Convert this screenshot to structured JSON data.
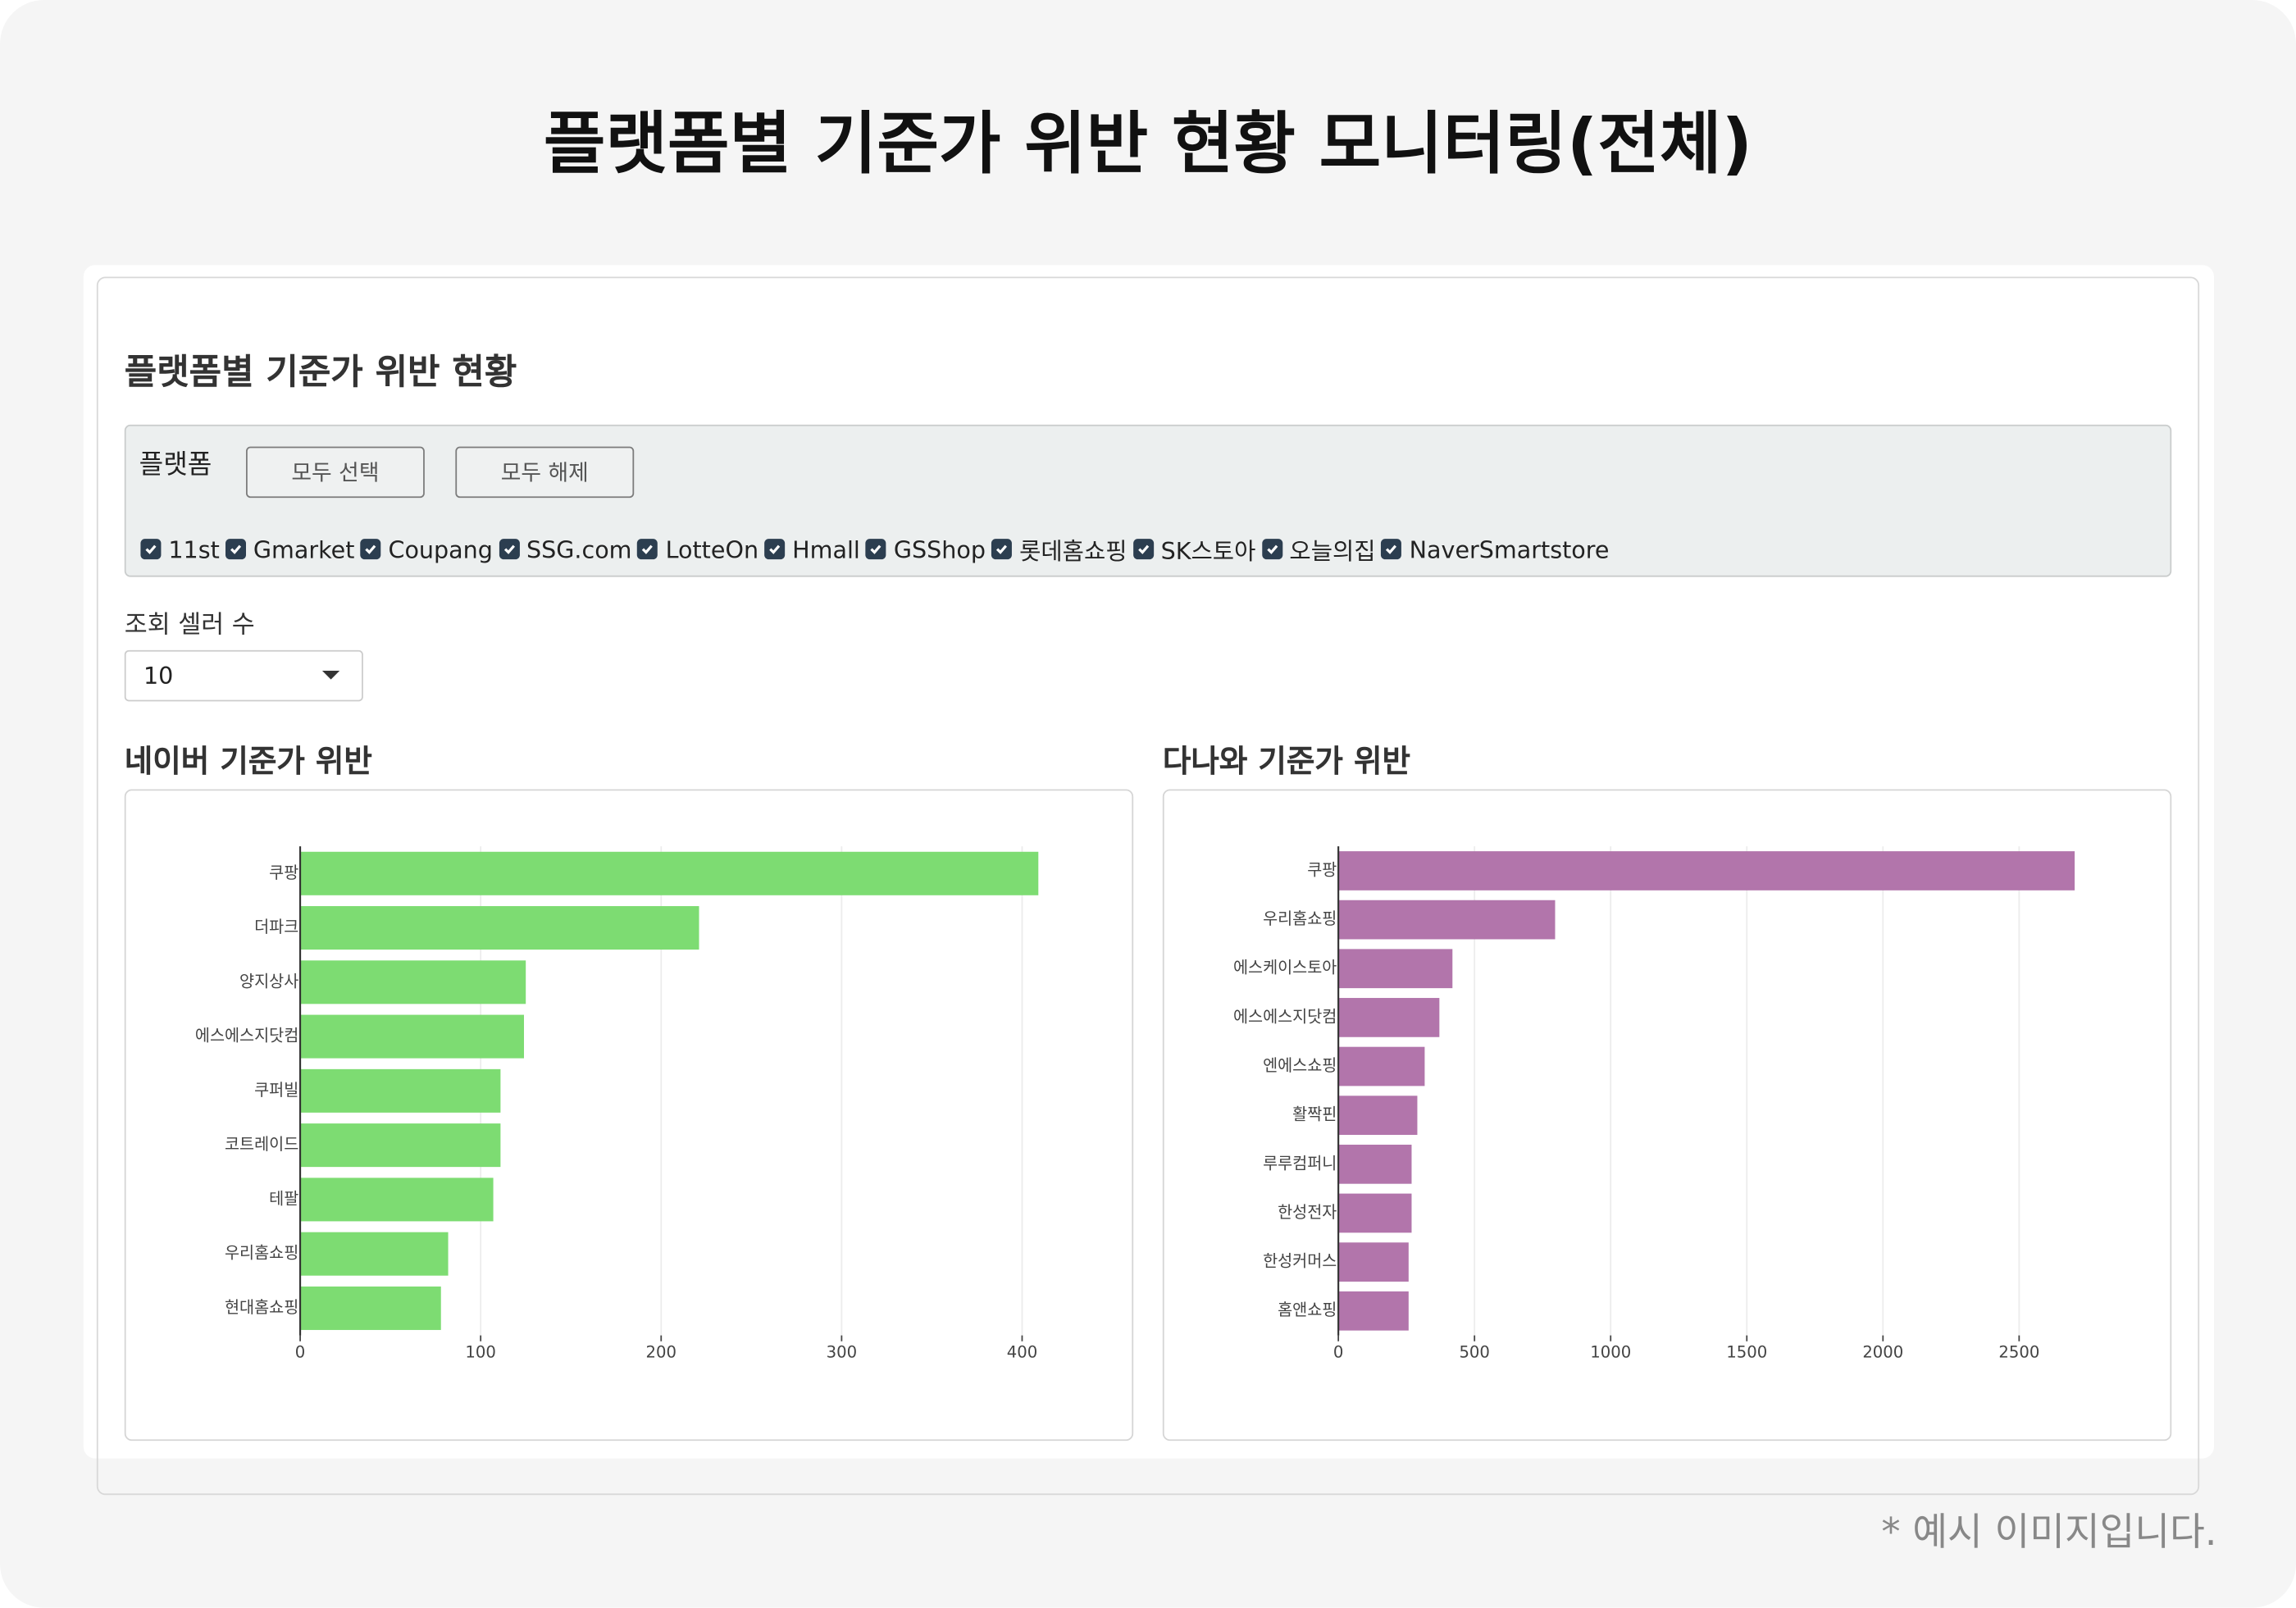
{
  "header": {
    "title": "플랫폼별 기준가 위반 현황 모니터링(전체)"
  },
  "panel": {
    "title": "플랫폼별 기준가 위반 현황",
    "platform_label": "플랫폼",
    "buttons": [
      "모두 선택",
      "모두 해제"
    ],
    "platforms": [
      "11st",
      "Gmarket",
      "Coupang",
      "SSG.com",
      "LotteOn",
      "Hmall",
      "GSShop",
      "롯데홈쇼핑",
      "SK스토아",
      "오늘의집",
      "NaverSmartstore"
    ],
    "seller_count_label": "조회 셀러 수",
    "seller_count": 10
  },
  "chart_data": [
    {
      "type": "bar",
      "orientation": "horizontal",
      "title": "네이버 기준가 위반",
      "categories": [
        "쿠팡",
        "더파크",
        "양지상사",
        "에스에스지닷컴",
        "쿠퍼빌",
        "코트레이드",
        "테팔",
        "우리홈쇼핑",
        "현대홈쇼핑"
      ],
      "values": [
        409,
        221,
        125,
        124,
        111,
        111,
        107,
        82,
        78
      ],
      "color": "#7ddc72",
      "xlim": [
        0,
        430
      ],
      "xticks": [
        0,
        100,
        200,
        300,
        400
      ],
      "grid": true
    },
    {
      "type": "bar",
      "orientation": "horizontal",
      "title": "다나와 기준가 위반",
      "categories": [
        "쿠팡",
        "우리홈쇼핑",
        "에스케이스토아",
        "에스에스지닷컴",
        "엔에스쇼핑",
        "활짝핀",
        "루루컴퍼니",
        "한성전자",
        "한성커머스",
        "홈앤쇼핑"
      ],
      "values": [
        2704,
        796,
        419,
        371,
        317,
        290,
        269,
        269,
        258,
        258
      ],
      "color": "#b275ab",
      "xlim": [
        0,
        2850
      ],
      "xticks": [
        0,
        500,
        1000,
        1500,
        2000,
        2500
      ],
      "grid": true
    }
  ],
  "footer": {
    "note": "* 예시 이미지입니다."
  }
}
